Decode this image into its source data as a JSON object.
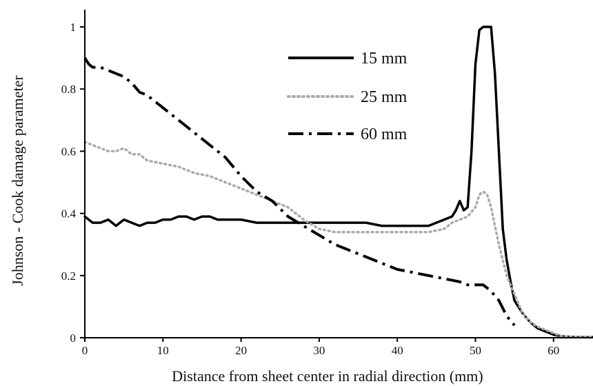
{
  "chart_data": {
    "type": "line",
    "title": "",
    "xlabel": "Distance from sheet center in radial direction (mm)",
    "ylabel": "Johnson - Cook damage parameter",
    "xlim": [
      0,
      65
    ],
    "ylim": [
      0,
      1.05
    ],
    "xticks": [
      "0",
      "10",
      "20",
      "30",
      "40",
      "50",
      "60"
    ],
    "yticks": [
      "0",
      "0.2",
      "0.4",
      "0.6",
      "0.8",
      "1"
    ],
    "grid": false,
    "legend_position": "top-right",
    "series": [
      {
        "name": "15 mm",
        "color": "#000000",
        "style": "solid",
        "x": [
          0,
          0.5,
          1,
          2,
          3,
          4,
          5,
          6,
          7,
          8,
          9,
          10,
          11,
          12,
          13,
          14,
          15,
          16,
          17,
          18,
          19,
          20,
          22,
          24,
          26,
          28,
          30,
          32,
          34,
          36,
          38,
          40,
          42,
          43,
          44,
          45,
          46,
          47,
          47.5,
          48,
          48.5,
          49,
          49.5,
          50,
          50.5,
          51,
          51.5,
          52,
          52.5,
          53,
          53.5,
          54,
          54.5,
          55,
          56,
          57,
          58,
          59,
          60,
          61,
          62,
          63,
          65
        ],
        "y": [
          0.39,
          0.38,
          0.37,
          0.37,
          0.38,
          0.36,
          0.38,
          0.37,
          0.36,
          0.37,
          0.37,
          0.38,
          0.38,
          0.39,
          0.39,
          0.38,
          0.39,
          0.39,
          0.38,
          0.38,
          0.38,
          0.38,
          0.37,
          0.37,
          0.37,
          0.37,
          0.37,
          0.37,
          0.37,
          0.37,
          0.36,
          0.36,
          0.36,
          0.36,
          0.36,
          0.37,
          0.38,
          0.39,
          0.41,
          0.44,
          0.41,
          0.42,
          0.6,
          0.88,
          0.99,
          1.0,
          1.0,
          1.0,
          0.85,
          0.6,
          0.35,
          0.25,
          0.18,
          0.12,
          0.08,
          0.05,
          0.03,
          0.02,
          0.01,
          0.005,
          0.003,
          0.002,
          0.002
        ]
      },
      {
        "name": "25 mm",
        "color": "#aaaaaa",
        "style": "dotted",
        "x": [
          0,
          1,
          2,
          3,
          4,
          5,
          6,
          7,
          8,
          10,
          12,
          14,
          16,
          18,
          20,
          22,
          24,
          26,
          28,
          30,
          32,
          34,
          36,
          38,
          40,
          42,
          44,
          46,
          47,
          48,
          49,
          50,
          50.5,
          51,
          51.5,
          52,
          52.5,
          53,
          53.5,
          54,
          55,
          56,
          57,
          58,
          59,
          60,
          61,
          63,
          65
        ],
        "y": [
          0.63,
          0.62,
          0.61,
          0.6,
          0.6,
          0.61,
          0.59,
          0.59,
          0.57,
          0.56,
          0.55,
          0.53,
          0.52,
          0.5,
          0.48,
          0.46,
          0.44,
          0.42,
          0.38,
          0.35,
          0.34,
          0.34,
          0.34,
          0.34,
          0.34,
          0.34,
          0.34,
          0.35,
          0.37,
          0.38,
          0.39,
          0.42,
          0.46,
          0.47,
          0.46,
          0.42,
          0.36,
          0.3,
          0.25,
          0.2,
          0.14,
          0.08,
          0.05,
          0.035,
          0.025,
          0.015,
          0.005,
          0.002,
          0.002
        ]
      },
      {
        "name": "60 mm",
        "color": "#000000",
        "style": "dashdot",
        "x": [
          0,
          0.5,
          1,
          2,
          3,
          4,
          5,
          6,
          7,
          8,
          10,
          12,
          14,
          16,
          18,
          20,
          22,
          24,
          26,
          28,
          30,
          32,
          34,
          36,
          38,
          40,
          42,
          44,
          46,
          48,
          49,
          50,
          51,
          52,
          53,
          54,
          55
        ],
        "y": [
          0.9,
          0.88,
          0.87,
          0.87,
          0.86,
          0.85,
          0.84,
          0.82,
          0.79,
          0.78,
          0.74,
          0.7,
          0.66,
          0.62,
          0.58,
          0.52,
          0.47,
          0.44,
          0.39,
          0.36,
          0.33,
          0.3,
          0.28,
          0.26,
          0.24,
          0.22,
          0.21,
          0.2,
          0.19,
          0.18,
          0.17,
          0.17,
          0.17,
          0.15,
          0.12,
          0.07,
          0.04
        ]
      }
    ]
  }
}
